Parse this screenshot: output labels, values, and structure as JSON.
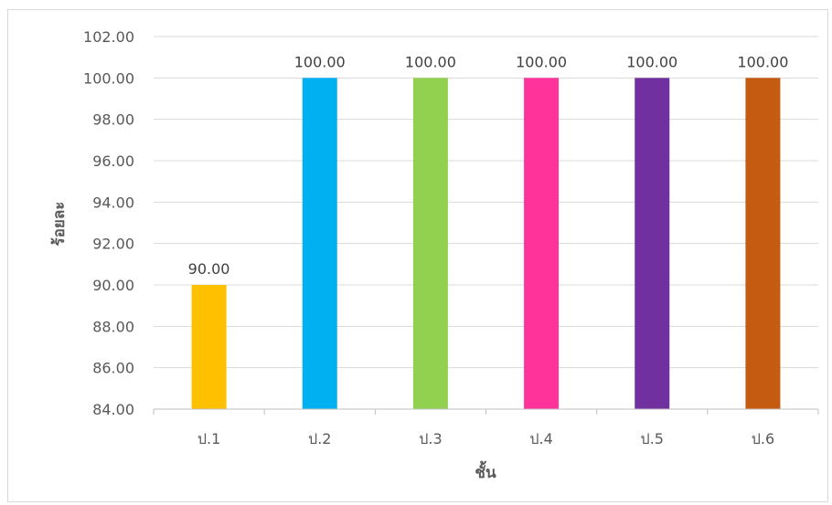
{
  "chart_data": {
    "type": "bar",
    "categories": [
      "ป.1",
      "ป.2",
      "ป.3",
      "ป.4",
      "ป.5",
      "ป.6"
    ],
    "values": [
      90.0,
      100.0,
      100.0,
      100.0,
      100.0,
      100.0
    ],
    "data_labels": [
      "90.00",
      "100.00",
      "100.00",
      "100.00",
      "100.00",
      "100.00"
    ],
    "bar_colors": [
      "#FFC000",
      "#00B0F0",
      "#92D050",
      "#FF3399",
      "#7030A0",
      "#C55A11"
    ],
    "title": "",
    "xlabel": "ชั้น",
    "ylabel": "ร้อยละ",
    "ylim": [
      84,
      102
    ],
    "yticks": [
      84,
      86,
      88,
      90,
      92,
      94,
      96,
      98,
      100,
      102
    ],
    "ytick_labels": [
      "84.00",
      "86.00",
      "88.00",
      "90.00",
      "92.00",
      "94.00",
      "96.00",
      "98.00",
      "100.00",
      "102.00"
    ],
    "grid": true,
    "legend": "none"
  }
}
